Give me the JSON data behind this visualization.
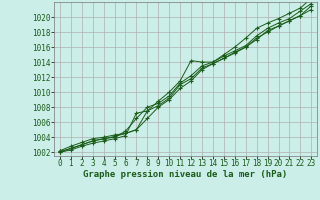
{
  "background_color": "#cceee8",
  "plot_bg_color": "#cceee8",
  "grid_color": "#b0b0b0",
  "line_color": "#1a5c1a",
  "marker_color": "#1a5c1a",
  "xlabel": "Graphe pression niveau de la mer (hPa)",
  "ylim": [
    1001.5,
    1022.0
  ],
  "xlim": [
    -0.5,
    23.5
  ],
  "yticks": [
    1002,
    1004,
    1006,
    1008,
    1010,
    1012,
    1014,
    1016,
    1018,
    1020
  ],
  "xticks": [
    0,
    1,
    2,
    3,
    4,
    5,
    6,
    7,
    8,
    9,
    10,
    11,
    12,
    13,
    14,
    15,
    16,
    17,
    18,
    19,
    20,
    21,
    22,
    23
  ],
  "series": [
    [
      1002.2,
      1002.8,
      1003.3,
      1003.8,
      1004.0,
      1004.3,
      1004.5,
      1005.0,
      1007.5,
      1008.8,
      1010.0,
      1011.5,
      1014.2,
      1014.0,
      1014.0,
      1015.0,
      1016.0,
      1017.2,
      1018.5,
      1019.2,
      1019.8,
      1020.5,
      1021.2,
      1022.5
    ],
    [
      1002.1,
      1002.5,
      1003.0,
      1003.5,
      1003.8,
      1004.0,
      1004.8,
      1006.5,
      1008.0,
      1008.5,
      1009.5,
      1011.2,
      1012.2,
      1013.5,
      1014.0,
      1014.8,
      1015.5,
      1016.2,
      1017.5,
      1018.5,
      1019.2,
      1019.8,
      1020.8,
      1021.8
    ],
    [
      1002.0,
      1002.3,
      1002.8,
      1003.2,
      1003.5,
      1003.8,
      1004.2,
      1007.2,
      1007.5,
      1008.2,
      1009.2,
      1011.0,
      1011.8,
      1013.2,
      1013.8,
      1014.5,
      1015.2,
      1016.0,
      1017.2,
      1018.0,
      1018.8,
      1019.5,
      1020.2,
      1021.0
    ],
    [
      1002.0,
      1002.5,
      1003.0,
      1003.5,
      1003.8,
      1004.1,
      1004.5,
      1005.0,
      1006.5,
      1008.0,
      1009.0,
      1010.5,
      1011.5,
      1013.0,
      1013.8,
      1014.5,
      1015.3,
      1016.0,
      1017.0,
      1018.2,
      1018.8,
      1019.5,
      1020.2,
      1021.5
    ]
  ],
  "tick_fontsize": 5.5,
  "xlabel_fontsize": 6.5
}
